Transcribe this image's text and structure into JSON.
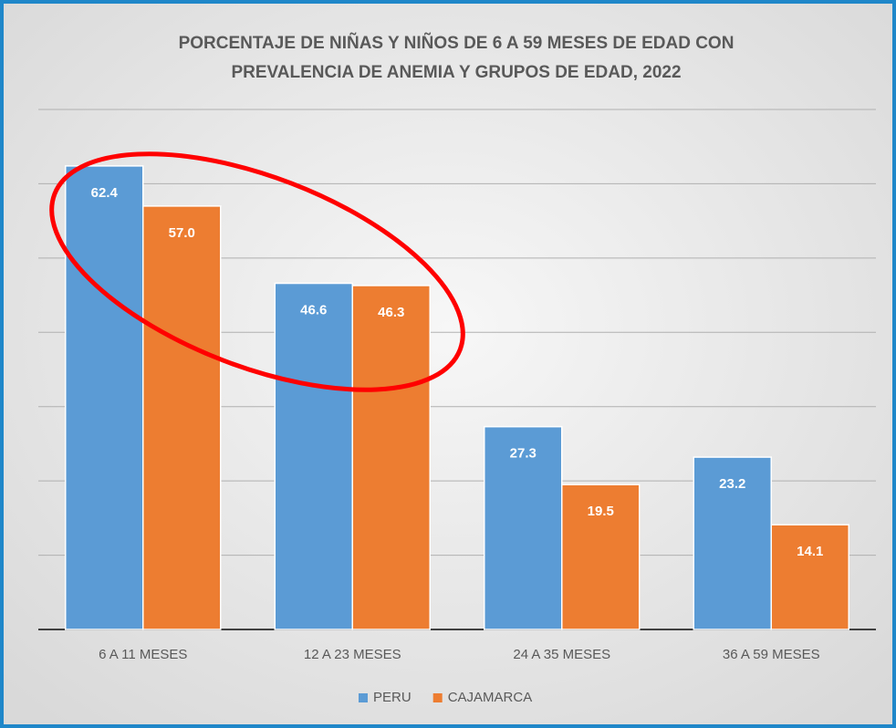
{
  "chart_data": {
    "type": "bar",
    "title": [
      "PORCENTAJE DE NIÑAS Y NIÑOS  DE 6 A 59 MESES DE EDAD CON",
      "PREVALENCIA DE ANEMIA Y GRUPOS DE EDAD, 2022"
    ],
    "categories": [
      "6 A 11 MESES",
      "12 A 23 MESES",
      "24 A 35 MESES",
      "36 A 59 MESES"
    ],
    "series": [
      {
        "name": "PERU",
        "color": "#5b9bd5",
        "values": [
          62.4,
          46.6,
          27.3,
          23.2
        ],
        "value_labels": [
          "62.4",
          "46.6",
          "27.3",
          "23.2"
        ]
      },
      {
        "name": "CAJAMARCA",
        "color": "#ed7d31",
        "values": [
          57,
          46.3,
          19.5,
          14.1
        ],
        "value_labels": [
          "57.0",
          "46.3",
          "19.5",
          "14.1"
        ]
      }
    ],
    "ylim": [
      0,
      70
    ],
    "yticks": [
      0,
      10,
      20,
      30,
      40,
      50,
      60,
      70
    ],
    "grid": true,
    "legend": "bottom"
  }
}
